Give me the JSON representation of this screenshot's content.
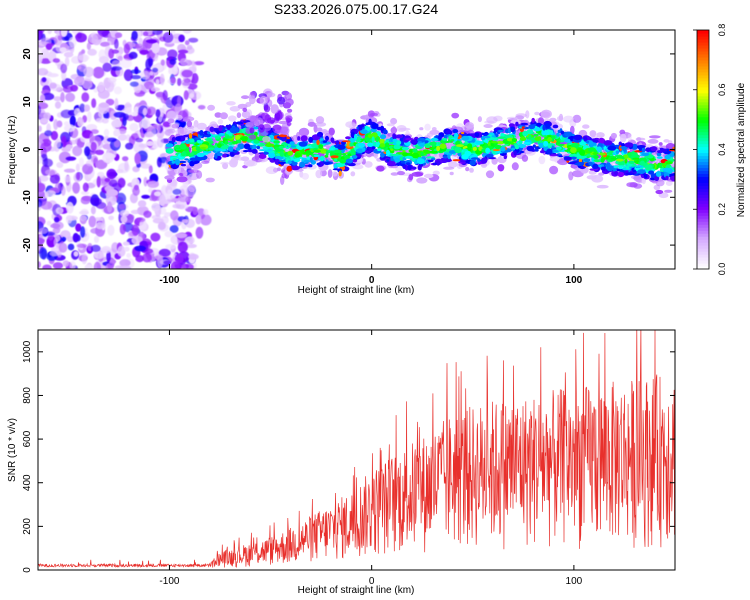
{
  "title": "S233.2026.075.00.17.G24",
  "chart_data": [
    {
      "type": "heatmap",
      "xlabel": "Height of straight line (km)",
      "ylabel": "Frequency (Hz)",
      "xlim": [
        -165,
        150
      ],
      "ylim": [
        -25,
        25
      ],
      "xticks": [
        "-100",
        "0",
        "100"
      ],
      "yticks": [
        "20",
        "10",
        "0",
        "-10",
        "-20"
      ],
      "colorbar": {
        "label": "Normalized spectral amplitude",
        "range": [
          0,
          0.8
        ],
        "ticks": [
          "0.0",
          "0.2",
          "0.4",
          "0.6",
          "0.8"
        ],
        "colors": [
          "#ffffff",
          "#d4a8ff",
          "#8000ff",
          "#0000ff",
          "#00ffff",
          "#00ff00",
          "#ffff00",
          "#ff8000",
          "#ff0000"
        ]
      },
      "ridge": {
        "x": [
          -100,
          -90,
          -80,
          -70,
          -60,
          -50,
          -40,
          -30,
          -25,
          -20,
          -15,
          -10,
          -5,
          0,
          10,
          20,
          30,
          40,
          50,
          60,
          70,
          80,
          90,
          100,
          110,
          120,
          130,
          140,
          150
        ],
        "y": [
          -1,
          0,
          1,
          2,
          3,
          1,
          -1,
          -0.5,
          0,
          -1,
          -2,
          0,
          2,
          3,
          0,
          -1,
          0,
          1,
          0,
          1,
          2,
          3,
          2,
          0,
          -1,
          -2,
          -2,
          -3,
          -3
        ]
      },
      "noise_region_x": [
        -165,
        -88
      ]
    },
    {
      "type": "line",
      "xlabel": "Height of straight line (km)",
      "ylabel": "SNR (10 * v/v)",
      "xlim": [
        -165,
        150
      ],
      "ylim": [
        0,
        1100
      ],
      "xticks": [
        "-100",
        "0",
        "100"
      ],
      "yticks": [
        "0",
        "200",
        "400",
        "600",
        "800",
        "1000"
      ],
      "color": "#e8302c",
      "envelope": {
        "x": [
          -165,
          -80,
          -75,
          -60,
          -50,
          -40,
          -30,
          -20,
          -10,
          0,
          10,
          20,
          30,
          40,
          60,
          80,
          100,
          120,
          140,
          150
        ],
        "y": [
          20,
          25,
          60,
          90,
          110,
          140,
          180,
          220,
          260,
          330,
          380,
          420,
          460,
          520,
          560,
          580,
          600,
          620,
          640,
          650
        ]
      }
    }
  ]
}
